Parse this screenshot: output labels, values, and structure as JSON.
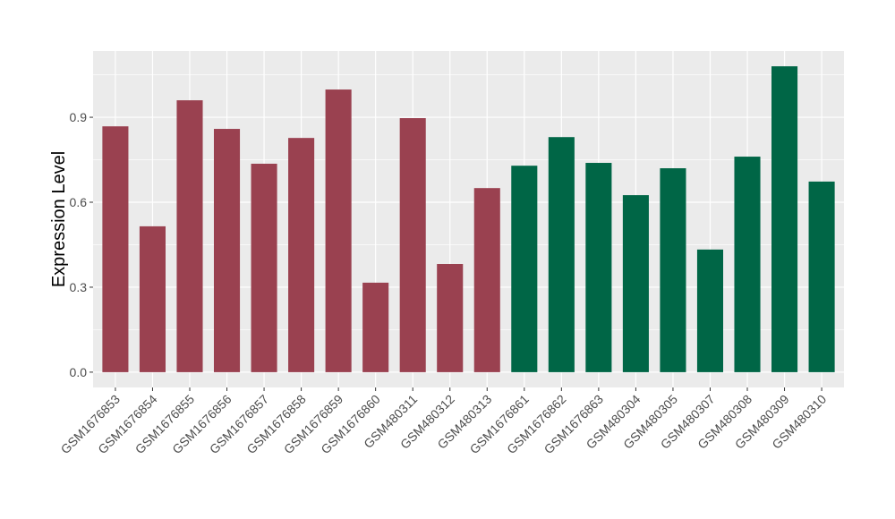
{
  "chart_data": {
    "type": "bar",
    "title": "",
    "xlabel": "",
    "ylabel": "Expression Level",
    "ylim": [
      -0.054,
      1.134
    ],
    "yticks": [
      0.0,
      0.3,
      0.6,
      0.9
    ],
    "ytick_labels": [
      "0.0",
      "0.3",
      "0.6",
      "0.9"
    ],
    "grid": true,
    "legend": "none",
    "categories": [
      "GSM1676853",
      "GSM1676854",
      "GSM1676855",
      "GSM1676856",
      "GSM1676857",
      "GSM1676858",
      "GSM1676859",
      "GSM1676860",
      "GSM480311",
      "GSM480312",
      "GSM480313",
      "GSM1676861",
      "GSM1676862",
      "GSM1676863",
      "GSM480304",
      "GSM480305",
      "GSM480307",
      "GSM480308",
      "GSM480309",
      "GSM480310"
    ],
    "values": [
      0.868,
      0.515,
      0.96,
      0.859,
      0.736,
      0.827,
      0.998,
      0.316,
      0.897,
      0.382,
      0.65,
      0.729,
      0.83,
      0.739,
      0.625,
      0.72,
      0.433,
      0.761,
      1.08,
      0.673
    ],
    "group_colors": [
      "#9a4150",
      "#9a4150",
      "#9a4150",
      "#9a4150",
      "#9a4150",
      "#9a4150",
      "#9a4150",
      "#9a4150",
      "#9a4150",
      "#9a4150",
      "#9a4150",
      "#006646",
      "#006646",
      "#006646",
      "#006646",
      "#006646",
      "#006646",
      "#006646",
      "#006646",
      "#006646"
    ],
    "panel_background": "#ebebeb"
  }
}
